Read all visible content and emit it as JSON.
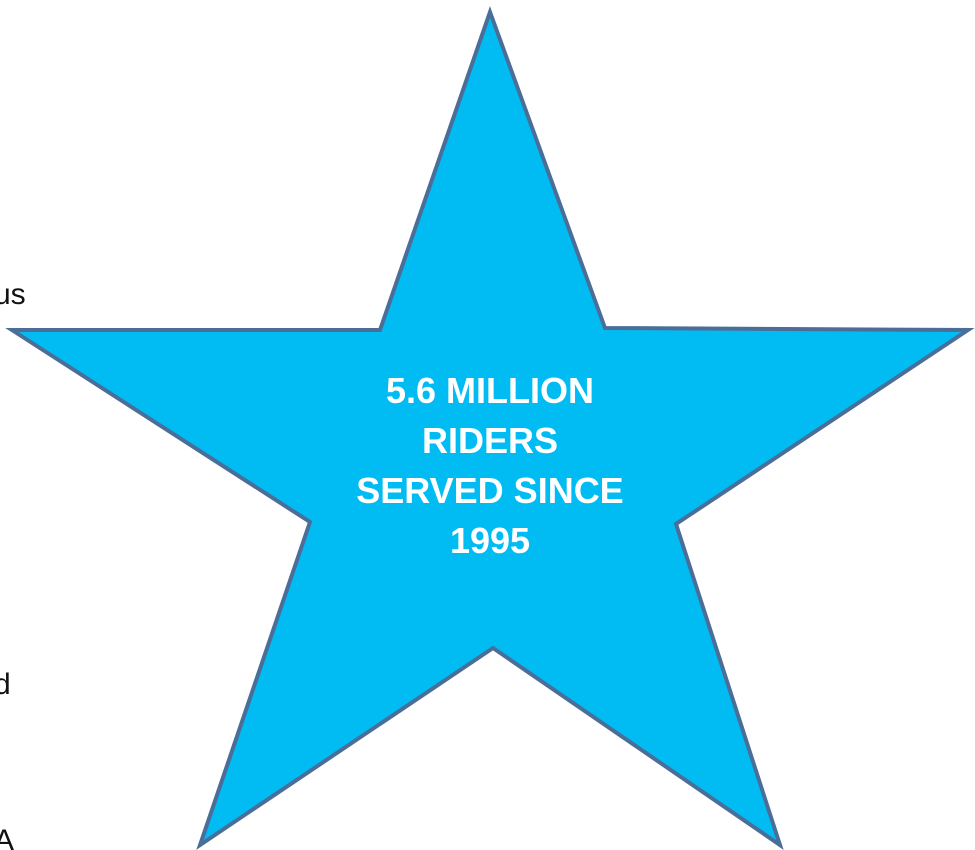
{
  "left_fragments": {
    "us": "us",
    "comma": ",",
    "d": "d",
    "a": "A"
  },
  "star": {
    "lines": [
      "5.6 MILLION",
      "RIDERS",
      "SERVED SINCE",
      "1995"
    ],
    "fill": "#00BCF2",
    "stroke": "#4A6E98",
    "text_color": "#FFFFFF"
  }
}
